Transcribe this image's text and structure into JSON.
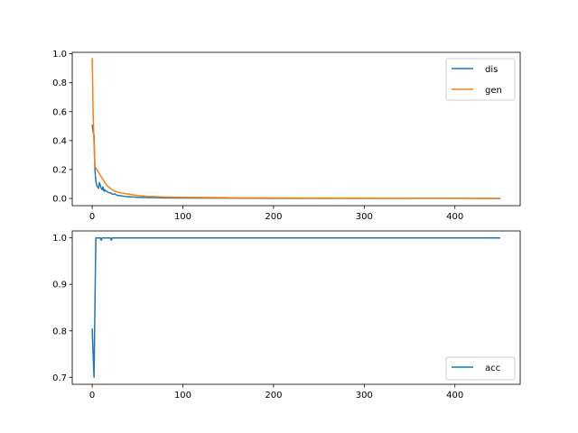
{
  "colors": {
    "series1": "#1f77b4",
    "series2": "#ff7f0e",
    "axis": "#000000",
    "legend_border": "#cccccc"
  },
  "chart_data": [
    {
      "type": "line",
      "xlim": [
        -22,
        472
      ],
      "ylim": [
        -0.05,
        1.01
      ],
      "xticks": [
        0,
        100,
        200,
        300,
        400
      ],
      "xtick_labels": [
        "0",
        "100",
        "200",
        "300",
        "400"
      ],
      "yticks": [
        0.0,
        0.2,
        0.4,
        0.6,
        0.8,
        1.0
      ],
      "ytick_labels": [
        "0.0",
        "0.2",
        "0.4",
        "0.6",
        "0.8",
        "1.0"
      ],
      "grid": false,
      "legend_position": "upper right",
      "series": [
        {
          "name": "dis",
          "color": "#1f77b4",
          "x": [
            0,
            1,
            2,
            3,
            4,
            5,
            6,
            7,
            8,
            9,
            10,
            11,
            12,
            13,
            14,
            15,
            16,
            18,
            20,
            22,
            25,
            28,
            30,
            35,
            40,
            45,
            50,
            60,
            70,
            80,
            100,
            150,
            200,
            300,
            450
          ],
          "y": [
            0.51,
            0.46,
            0.44,
            0.2,
            0.12,
            0.09,
            0.08,
            0.07,
            0.11,
            0.09,
            0.07,
            0.06,
            0.08,
            0.05,
            0.06,
            0.05,
            0.05,
            0.04,
            0.04,
            0.03,
            0.03,
            0.02,
            0.02,
            0.015,
            0.012,
            0.01,
            0.008,
            0.006,
            0.005,
            0.004,
            0.003,
            0.002,
            0.001,
            0.001,
            0.0
          ]
        },
        {
          "name": "gen",
          "color": "#ff7f0e",
          "x": [
            0,
            1,
            2,
            3,
            4,
            5,
            6,
            7,
            8,
            9,
            10,
            12,
            14,
            16,
            18,
            20,
            22,
            25,
            28,
            30,
            35,
            40,
            45,
            50,
            60,
            70,
            80,
            100,
            150,
            200,
            300,
            450
          ],
          "y": [
            0.97,
            0.6,
            0.38,
            0.22,
            0.21,
            0.2,
            0.19,
            0.18,
            0.17,
            0.16,
            0.15,
            0.13,
            0.11,
            0.09,
            0.08,
            0.07,
            0.06,
            0.05,
            0.045,
            0.04,
            0.035,
            0.03,
            0.025,
            0.02,
            0.015,
            0.012,
            0.01,
            0.008,
            0.005,
            0.003,
            0.002,
            0.001
          ]
        }
      ]
    },
    {
      "type": "line",
      "xlim": [
        -22,
        472
      ],
      "ylim": [
        0.685,
        1.015
      ],
      "xticks": [
        0,
        100,
        200,
        300,
        400
      ],
      "xtick_labels": [
        "0",
        "100",
        "200",
        "300",
        "400"
      ],
      "yticks": [
        0.7,
        0.8,
        0.9,
        1.0
      ],
      "ytick_labels": [
        "0.7",
        "0.8",
        "0.9",
        "1.0"
      ],
      "grid": false,
      "legend_position": "lower right",
      "series": [
        {
          "name": "acc",
          "color": "#1f77b4",
          "x": [
            0,
            1,
            2,
            3,
            4,
            5,
            6,
            7,
            8,
            9,
            10,
            11,
            12,
            13,
            14,
            15,
            18,
            20,
            21,
            22,
            23,
            25,
            30,
            50,
            100,
            200,
            300,
            450
          ],
          "y": [
            0.805,
            0.75,
            0.7,
            0.85,
            1.0,
            1.0,
            1.0,
            1.0,
            1.0,
            1.0,
            0.995,
            1.0,
            1.0,
            1.0,
            1.0,
            1.0,
            1.0,
            1.0,
            0.995,
            1.0,
            1.0,
            1.0,
            1.0,
            1.0,
            1.0,
            1.0,
            1.0,
            1.0
          ]
        }
      ]
    }
  ]
}
